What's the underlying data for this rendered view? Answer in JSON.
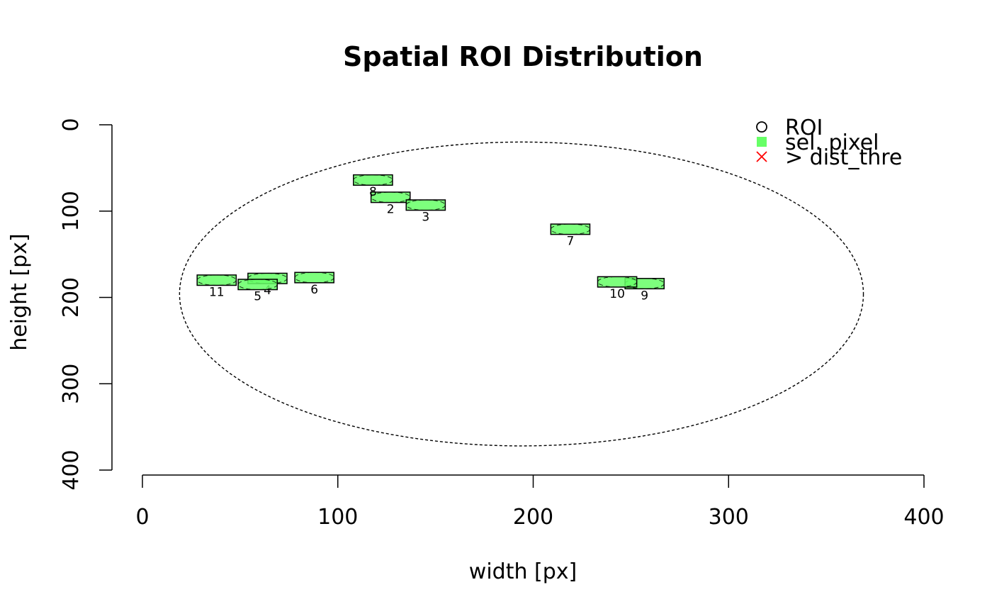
{
  "chart_data": {
    "type": "scatter",
    "title": "Spatial ROI Distribution",
    "xlabel": "width [px]",
    "ylabel": "height [px]",
    "xlim": [
      0,
      400
    ],
    "ylim": [
      400,
      0
    ],
    "x_ticks": [
      "0",
      "100",
      "200",
      "300",
      "400"
    ],
    "y_ticks": [
      "0",
      "100",
      "200",
      "300",
      "400"
    ],
    "y_axis_reversed": true,
    "grid": false,
    "legend_position": "top-right",
    "legend": [
      {
        "label": "ROI",
        "symbol": "open-circle",
        "color": "#000000"
      },
      {
        "label": "sel. pixel",
        "symbol": "filled-square",
        "color": "#66ff66"
      },
      {
        "label": "> dist_thre",
        "symbol": "cross",
        "color": "#ff0000"
      }
    ],
    "bounding_ellipse": {
      "center": [
        194,
        196
      ],
      "radius_x": 175,
      "radius_y": 176,
      "style": "dashed"
    },
    "rois": [
      {
        "label": "2",
        "x": 127,
        "y": 84,
        "w": 20,
        "h": 12
      },
      {
        "label": "3",
        "x": 145,
        "y": 93,
        "w": 20,
        "h": 12
      },
      {
        "label": "4",
        "x": 64,
        "y": 178,
        "w": 20,
        "h": 12
      },
      {
        "label": "5",
        "x": 59,
        "y": 185,
        "w": 20,
        "h": 12
      },
      {
        "label": "6",
        "x": 88,
        "y": 177,
        "w": 20,
        "h": 12
      },
      {
        "label": "7",
        "x": 219,
        "y": 121,
        "w": 20,
        "h": 12
      },
      {
        "label": "8",
        "x": 118,
        "y": 64,
        "w": 20,
        "h": 12
      },
      {
        "label": "9",
        "x": 257,
        "y": 184,
        "w": 20,
        "h": 12
      },
      {
        "label": "10",
        "x": 243,
        "y": 182,
        "w": 20,
        "h": 12
      },
      {
        "label": "11",
        "x": 38,
        "y": 180,
        "w": 20,
        "h": 12
      }
    ]
  },
  "colors": {
    "roi_fill": "#66ff66",
    "roi_overlap_fill": "#22ee22",
    "outline": "#000000",
    "exceed": "#ff0000"
  }
}
